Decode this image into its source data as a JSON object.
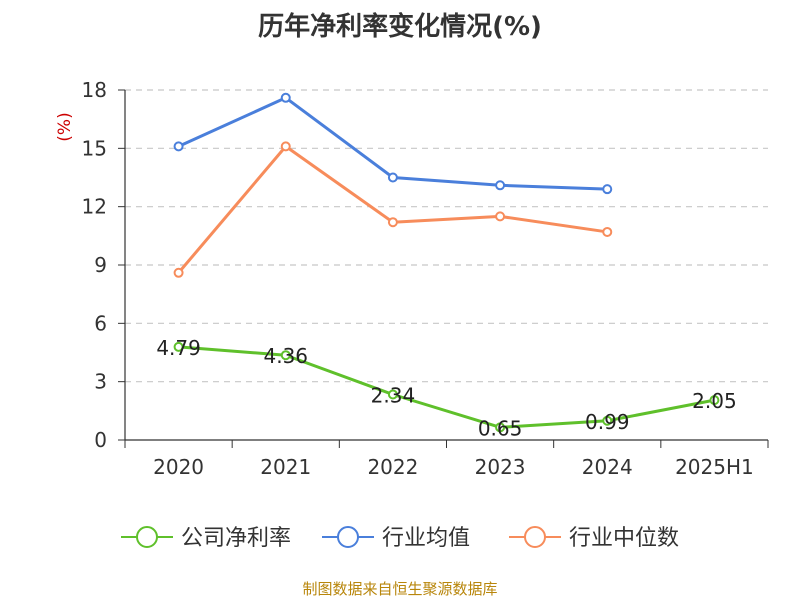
{
  "chart_data": {
    "type": "line",
    "title": "历年净利率变化情况(%)",
    "xlabel": "",
    "ylabel": "(%)",
    "categories": [
      "2020",
      "2021",
      "2022",
      "2023",
      "2024",
      "2025H1"
    ],
    "ylim": [
      0,
      18
    ],
    "yticks": [
      0,
      3,
      6,
      9,
      12,
      15,
      18
    ],
    "grid": true,
    "legend_position": "bottom",
    "series": [
      {
        "name": "公司净利率",
        "color": "#5fc02b",
        "values": [
          4.79,
          4.36,
          2.34,
          0.65,
          0.99,
          2.05
        ],
        "labels": [
          "4.79",
          "4.36",
          "2.34",
          "0.65",
          "0.99",
          "2.05"
        ]
      },
      {
        "name": "行业均值",
        "color": "#4a7fdb",
        "values": [
          15.1,
          17.6,
          13.5,
          13.1,
          12.9,
          null
        ]
      },
      {
        "name": "行业中位数",
        "color": "#f78c5b",
        "values": [
          8.6,
          15.1,
          11.2,
          11.5,
          10.7,
          null
        ]
      }
    ]
  },
  "source": "制图数据来自恒生聚源数据库"
}
